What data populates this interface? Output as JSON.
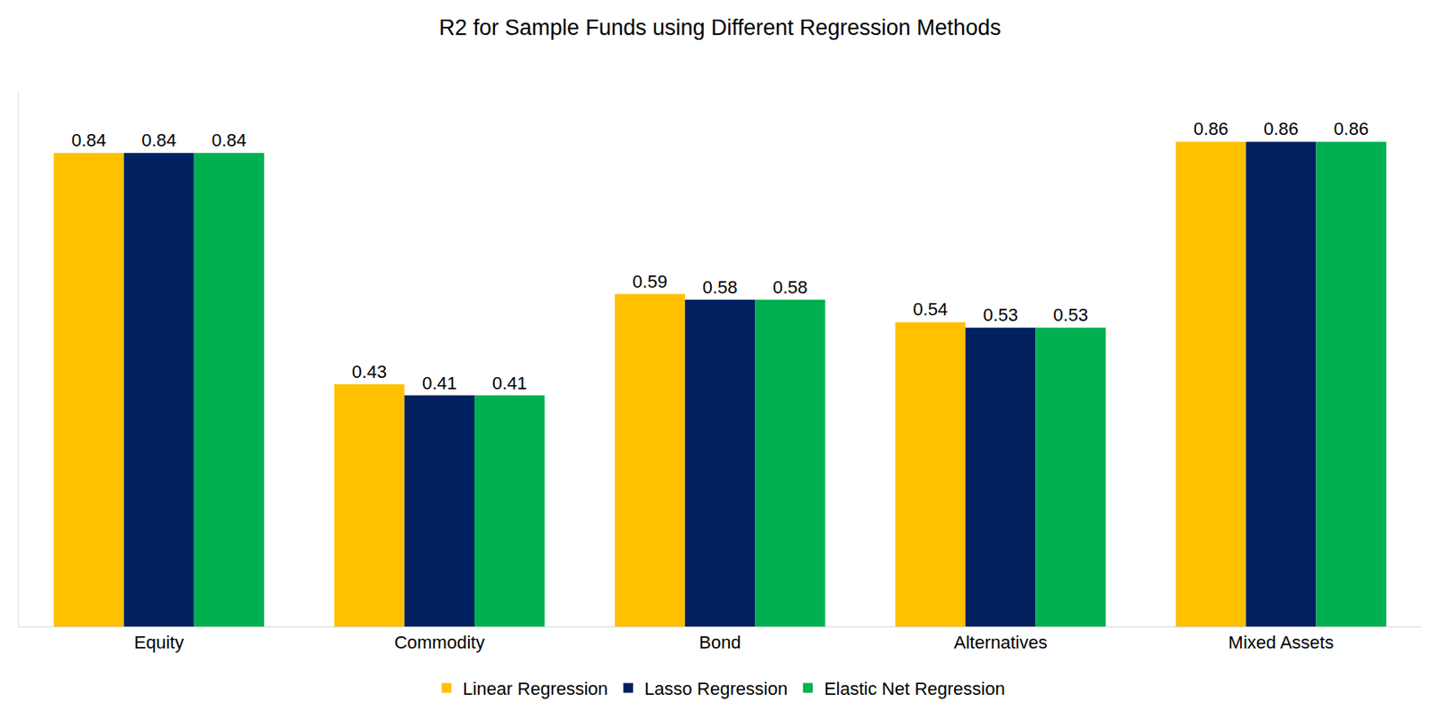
{
  "chart_data": {
    "type": "bar",
    "title": "R2 for Sample Funds using Different Regression Methods",
    "categories": [
      "Equity",
      "Commodity",
      "Bond",
      "Alternatives",
      "Mixed Assets"
    ],
    "series": [
      {
        "name": "Linear Regression",
        "color": "#FFC000",
        "values": [
          0.84,
          0.43,
          0.59,
          0.54,
          0.86
        ]
      },
      {
        "name": "Lasso Regression",
        "color": "#002060",
        "values": [
          0.84,
          0.41,
          0.58,
          0.53,
          0.86
        ]
      },
      {
        "name": "Elastic Net Regression",
        "color": "#00B050",
        "values": [
          0.84,
          0.41,
          0.58,
          0.53,
          0.86
        ]
      }
    ],
    "ylim": [
      0,
      0.95
    ],
    "grid": false,
    "legend": "bottom",
    "data_labels": true,
    "tick_labels": "x"
  }
}
